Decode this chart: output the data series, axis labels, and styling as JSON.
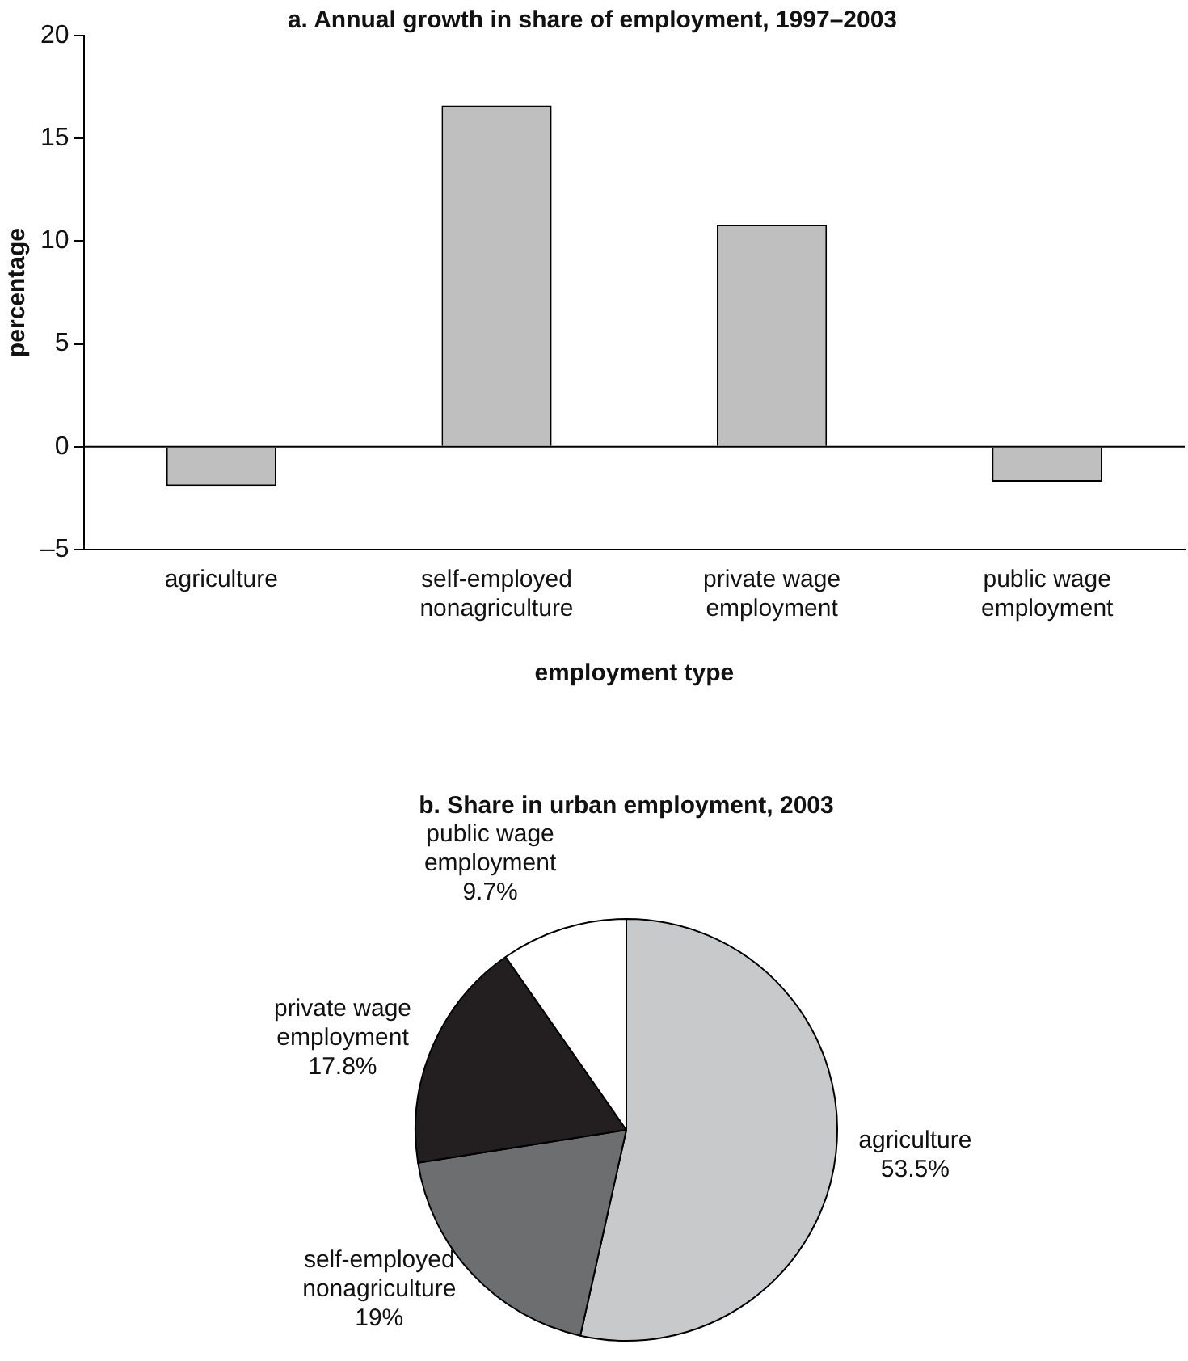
{
  "chart_data": [
    {
      "type": "bar",
      "title": "a. Annual growth in share of employment, 1997–2003",
      "xlabel": "employment type",
      "ylabel": "percentage",
      "categories": [
        "agriculture",
        "self-employed nonagriculture",
        "private wage employment",
        "public wage employment"
      ],
      "values": [
        -1.9,
        16.6,
        10.8,
        -1.7
      ],
      "color": "#bfbfbf",
      "ylim": [
        -5,
        20
      ],
      "yticks": [
        {
          "value": -5,
          "label": "–5"
        },
        0,
        5,
        10,
        15,
        20
      ],
      "ref_lines": [
        {
          "axis": "y",
          "value": 0,
          "color": "#000000"
        }
      ],
      "grid": false,
      "legend": false
    },
    {
      "type": "pie",
      "title": "b. Share in urban employment, 2003",
      "categories": [
        "agriculture",
        "self-employed nonagriculture",
        "private wage employment",
        "public wage employment"
      ],
      "values": [
        53.5,
        19,
        17.8,
        9.7
      ],
      "value_labels": [
        "53.5%",
        "19%",
        "17.8%",
        "9.7%"
      ],
      "colors": [
        "#c8c9cb",
        "#6d6e70",
        "#231f20",
        "#ffffff"
      ],
      "legend": false
    }
  ]
}
